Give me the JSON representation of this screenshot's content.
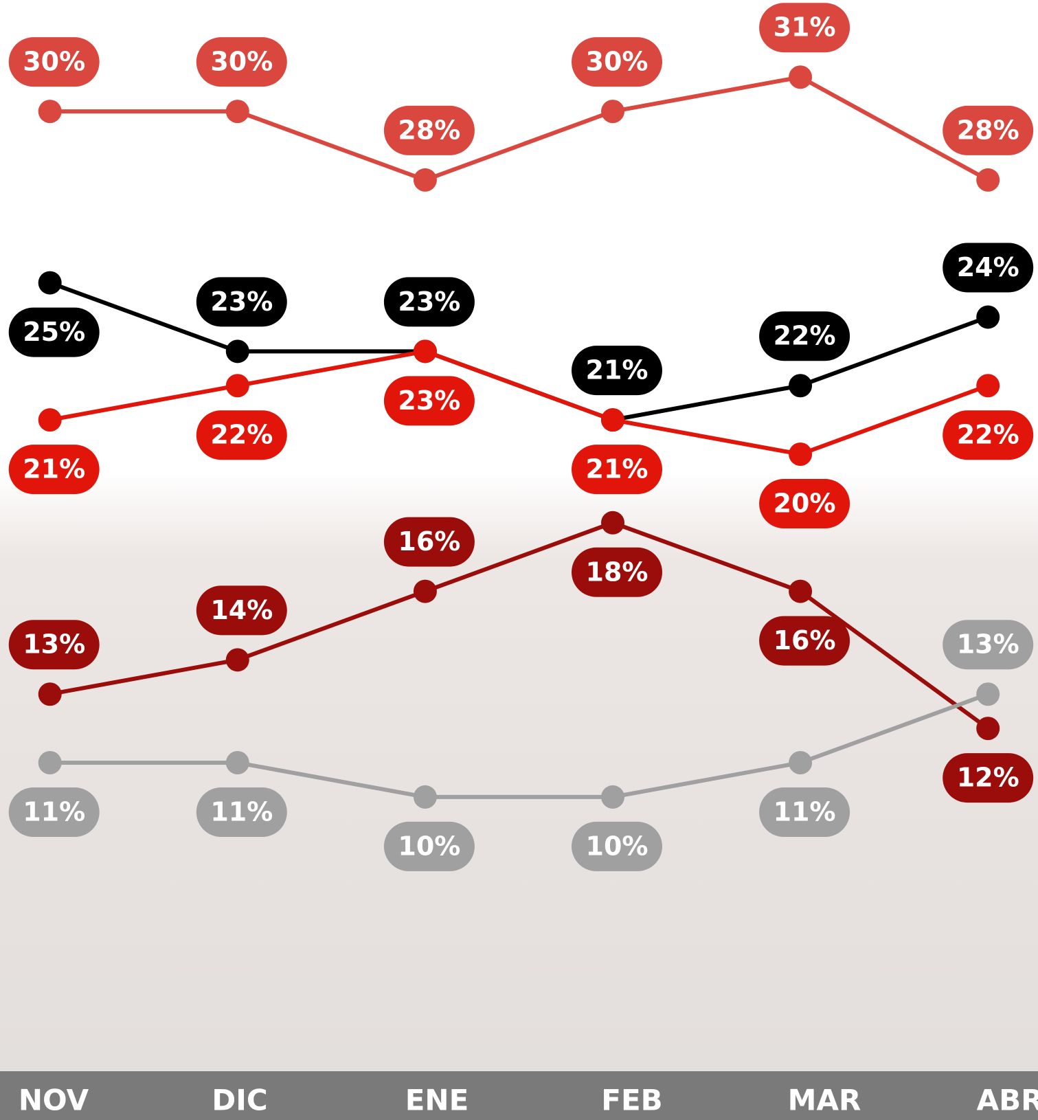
{
  "chart_data": {
    "type": "line",
    "categories": [
      "NOV",
      "DIC",
      "ENE",
      "FEB",
      "MAR",
      "ABR"
    ],
    "ylim": [
      2,
      33.25
    ],
    "series": [
      {
        "color": "#d9473e",
        "values": [
          30,
          30,
          28,
          30,
          31,
          28
        ],
        "value_labels": [
          "30%",
          "30%",
          "28%",
          "30%",
          "31%",
          "28%"
        ]
      },
      {
        "color": "#000000",
        "values": [
          25,
          23,
          23,
          21,
          22,
          24
        ],
        "value_labels": [
          "25%",
          "23%",
          "23%",
          "21%",
          "22%",
          "24%"
        ]
      },
      {
        "color": "#e2150a",
        "values": [
          21,
          22,
          23,
          21,
          20,
          22
        ],
        "value_labels": [
          "21%",
          "22%",
          "23%",
          "21%",
          "20%",
          "22%"
        ]
      },
      {
        "color": "#9b0d0a",
        "values": [
          13,
          14,
          16,
          18,
          16,
          12
        ],
        "value_labels": [
          "13%",
          "14%",
          "16%",
          "18%",
          "16%",
          "12%"
        ]
      },
      {
        "color": "#a0a0a0",
        "values": [
          11,
          11,
          10,
          10,
          11,
          13
        ],
        "value_labels": [
          "11%",
          "11%",
          "10%",
          "10%",
          "11%",
          "13%"
        ]
      }
    ]
  }
}
